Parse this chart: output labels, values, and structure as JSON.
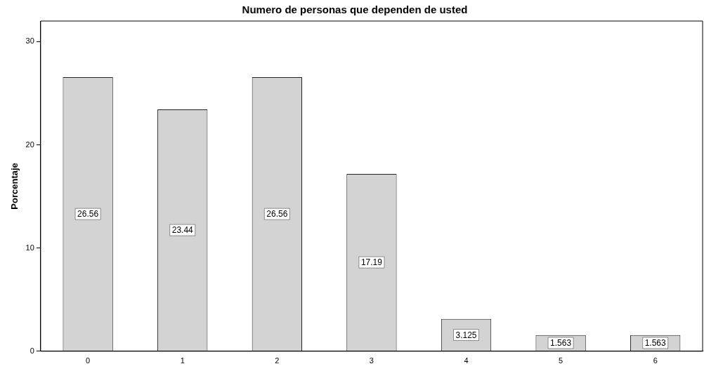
{
  "chart_data": {
    "type": "bar",
    "title": "Numero de personas que dependen de usted",
    "ylabel": "Porcentaje",
    "categories": [
      "0",
      "1",
      "2",
      "3",
      "4",
      "5",
      "6"
    ],
    "values": [
      26.56,
      23.44,
      26.56,
      17.19,
      3.125,
      1.563,
      1.563
    ],
    "color": "#d3d3d3",
    "ylim": [
      0,
      32
    ],
    "yticks": [
      0,
      10,
      20,
      30
    ],
    "grid": false,
    "legend": false,
    "data_labels": true
  }
}
